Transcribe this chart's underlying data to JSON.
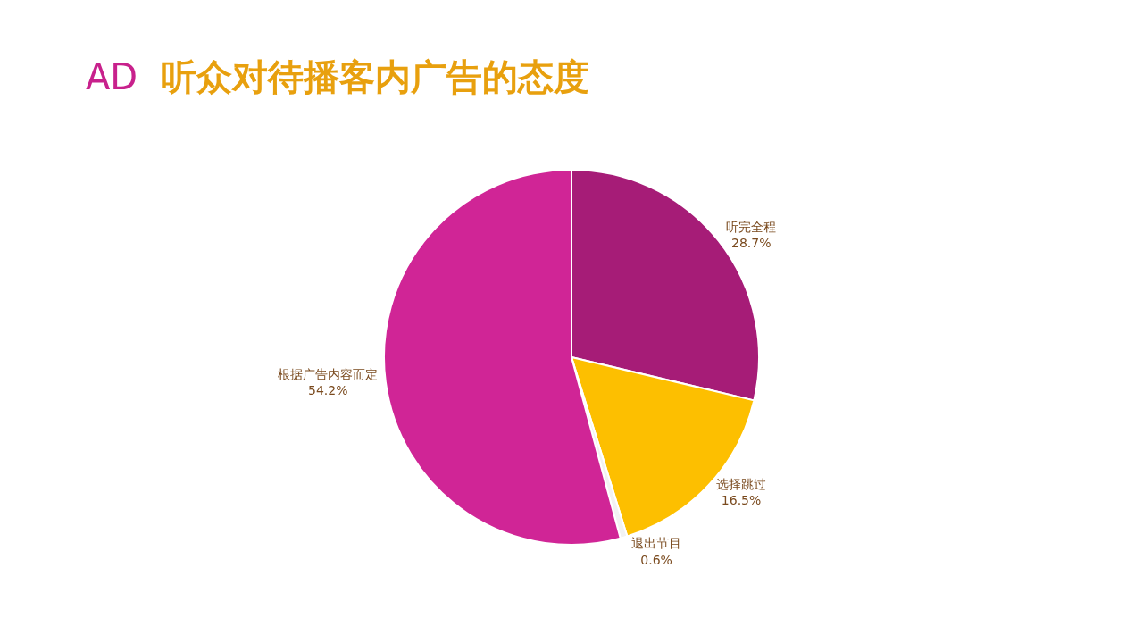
{
  "chart_data": {
    "type": "pie",
    "title": "AD 听众对待播客内广告的态度",
    "categories": [
      "听完全程",
      "选择跳过",
      "退出节目",
      "根据广告内容而定"
    ],
    "values": [
      28.7,
      16.5,
      0.6,
      54.2
    ],
    "value_labels": [
      "28.7%",
      "16.5%",
      "0.6%",
      "54.2%"
    ],
    "colors": [
      "#a61c77",
      "#fdbf00",
      "#f2f2f2",
      "#d02596"
    ],
    "legend": false
  }
}
